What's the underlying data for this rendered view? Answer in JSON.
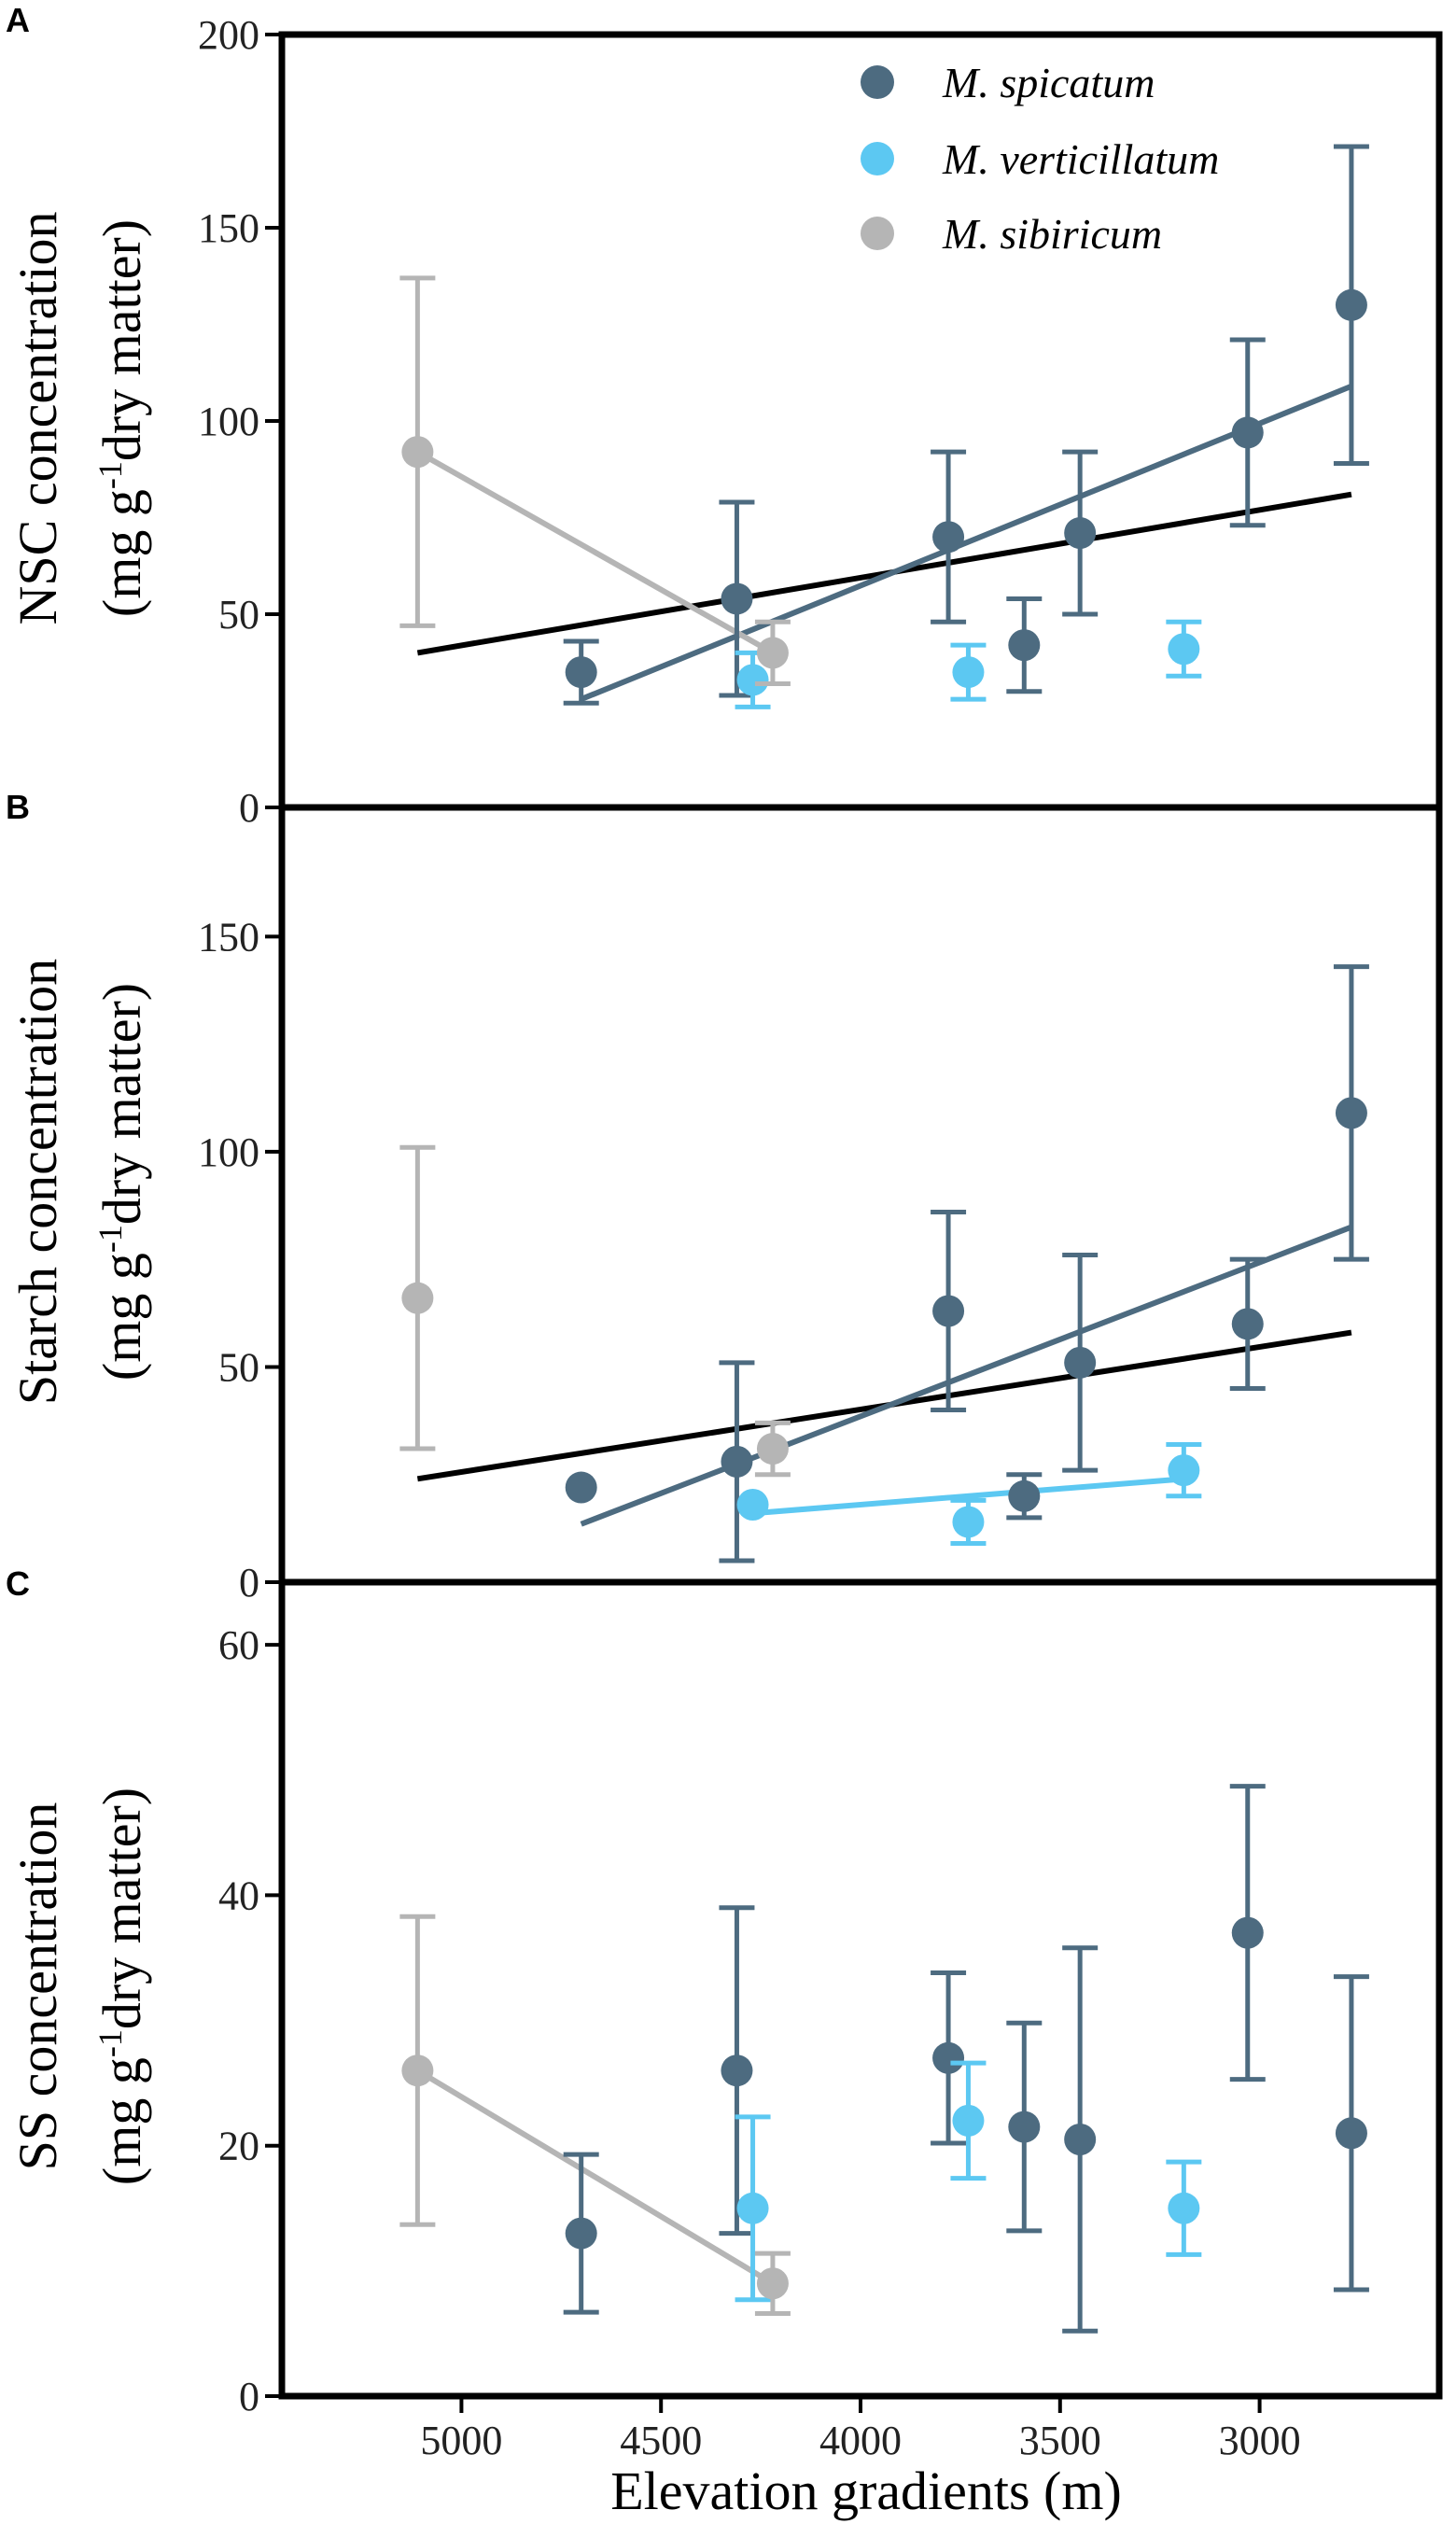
{
  "figure": {
    "colors": {
      "spicatum": "#4d6b80",
      "verticillatum": "#5cc8f2",
      "sibiricum": "#b5b5b5",
      "overall_fit": "#000000"
    },
    "legend": [
      {
        "key": "spicatum",
        "label": "M. spicatum"
      },
      {
        "key": "verticillatum",
        "label": "M. verticillatum"
      },
      {
        "key": "sibiricum",
        "label": "M. sibiricum"
      }
    ],
    "xlabel": "Elevation gradients (m)"
  },
  "chart_data": [
    {
      "type": "scatter",
      "panel_letter": "A",
      "ylabel_line1": "NSC concentration",
      "ylabel_line2_pre": "(mg g",
      "ylabel_sup": "-1",
      "ylabel_line2_post": "dry matter)",
      "xlim": [
        5450,
        2550
      ],
      "xlabel": "Elevation gradients (m)",
      "x_ticks": [],
      "ylim": [
        0,
        200
      ],
      "y_ticks": [
        0,
        50,
        100,
        150,
        200
      ],
      "show_legend": true,
      "series": [
        {
          "key": "spicatum",
          "name": "M. spicatum",
          "x": [
            4700,
            4310,
            3780,
            3590,
            3450,
            3030,
            2770
          ],
          "y": [
            35,
            54,
            70,
            42,
            71,
            97,
            130
          ],
          "err": [
            8,
            25,
            22,
            12,
            21,
            24,
            41
          ]
        },
        {
          "key": "verticillatum",
          "name": "M. verticillatum",
          "x": [
            4270,
            3730,
            3190
          ],
          "y": [
            33,
            35,
            41
          ],
          "err": [
            7,
            7,
            7
          ]
        },
        {
          "key": "sibiricum",
          "name": "M. sibiricum",
          "x": [
            5110,
            4220
          ],
          "y": [
            92,
            40
          ],
          "err": [
            45,
            8
          ]
        }
      ],
      "fits": [
        {
          "key": "overall_fit",
          "x": [
            5110,
            2770
          ],
          "y": [
            40,
            81
          ]
        },
        {
          "key": "spicatum",
          "x": [
            4700,
            2770
          ],
          "y": [
            28,
            109
          ]
        },
        {
          "key": "sibiricum",
          "x": [
            5110,
            4220
          ],
          "y": [
            92,
            40
          ]
        }
      ]
    },
    {
      "type": "scatter",
      "panel_letter": "B",
      "ylabel_line1": "Starch concentration",
      "ylabel_line2_pre": "(mg g",
      "ylabel_sup": "-1",
      "ylabel_line2_post": "dry matter)",
      "xlim": [
        5450,
        2550
      ],
      "xlabel": "Elevation gradients (m)",
      "x_ticks": [],
      "ylim": [
        0,
        180
      ],
      "y_ticks": [
        0,
        50,
        100,
        150
      ],
      "show_legend": false,
      "series": [
        {
          "key": "spicatum",
          "name": "M. spicatum",
          "x": [
            4700,
            4310,
            3780,
            3590,
            3450,
            3030,
            2770
          ],
          "y": [
            22,
            28,
            63,
            20,
            51,
            60,
            109
          ],
          "err": [
            0,
            23,
            23,
            5,
            25,
            15,
            34
          ]
        },
        {
          "key": "verticillatum",
          "name": "M. verticillatum",
          "x": [
            4270,
            3730,
            3190
          ],
          "y": [
            18,
            14,
            26
          ],
          "err": [
            0,
            5,
            6
          ]
        },
        {
          "key": "sibiricum",
          "name": "M. sibiricum",
          "x": [
            5110,
            4220
          ],
          "y": [
            66,
            31
          ],
          "err": [
            35,
            6
          ]
        }
      ],
      "fits": [
        {
          "key": "overall_fit",
          "x": [
            5110,
            2770
          ],
          "y": [
            24,
            58
          ]
        },
        {
          "key": "spicatum",
          "x": [
            4700,
            2770
          ],
          "y": [
            13.5,
            82.5
          ]
        },
        {
          "key": "verticillatum",
          "x": [
            4270,
            3190
          ],
          "y": [
            16,
            24
          ]
        }
      ]
    },
    {
      "type": "scatter",
      "panel_letter": "C",
      "ylabel_line1": "SS concentration",
      "ylabel_line2_pre": "(mg g",
      "ylabel_sup": "-1",
      "ylabel_line2_post": "dry matter)",
      "xlim": [
        5450,
        2550
      ],
      "xlabel": "Elevation gradients (m)",
      "x_ticks": [
        5000,
        4500,
        4000,
        3500,
        3000
      ],
      "ylim": [
        0,
        65
      ],
      "y_ticks": [
        0,
        20,
        40,
        60
      ],
      "show_legend": false,
      "series": [
        {
          "key": "spicatum",
          "name": "M. spicatum",
          "x": [
            4700,
            4310,
            3780,
            3590,
            3450,
            3030,
            2770
          ],
          "y": [
            13,
            26,
            27,
            21.5,
            20.5,
            37,
            21
          ],
          "err": [
            6.3,
            13,
            6.8,
            8.3,
            15.3,
            11.7,
            12.5
          ]
        },
        {
          "key": "verticillatum",
          "name": "M. verticillatum",
          "x": [
            4270,
            3730,
            3190
          ],
          "y": [
            15,
            22,
            15
          ],
          "err": [
            7.3,
            4.6,
            3.7
          ]
        },
        {
          "key": "sibiricum",
          "name": "M. sibiricum",
          "x": [
            5110,
            4220
          ],
          "y": [
            26,
            9
          ],
          "err": [
            12.3,
            2.4
          ]
        }
      ],
      "fits": [
        {
          "key": "sibiricum",
          "x": [
            5110,
            4220
          ],
          "y": [
            26,
            9
          ]
        }
      ]
    }
  ]
}
